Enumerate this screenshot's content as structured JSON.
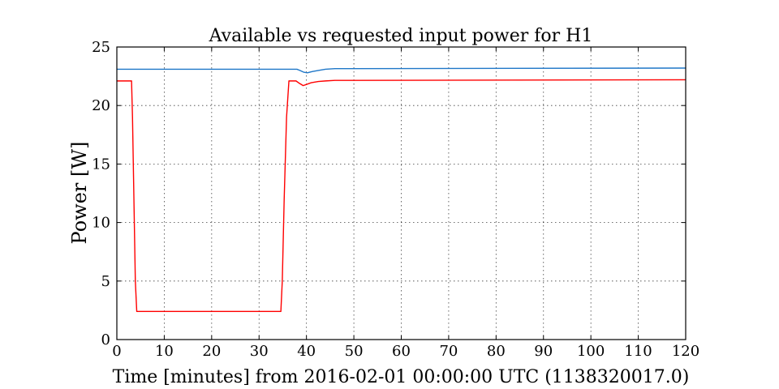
{
  "chart_data": {
    "type": "line",
    "title": "Available vs requested input power for H1",
    "xlabel": "Time [minutes] from 2016-02-01 00:00:00 UTC (1138320017.0)",
    "ylabel": "Power [W]",
    "xlim": [
      0,
      120
    ],
    "ylim": [
      0,
      25
    ],
    "xticks": [
      0,
      10,
      20,
      30,
      40,
      50,
      60,
      70,
      80,
      90,
      100,
      110,
      120
    ],
    "yticks": [
      0,
      5,
      10,
      15,
      20,
      25
    ],
    "grid": true,
    "series": [
      {
        "color": "#1f77c8",
        "x": [
          0,
          38,
          38.6,
          39.4,
          40.2,
          41.2,
          42.5,
          44,
          46,
          50,
          120
        ],
        "y": [
          23.1,
          23.1,
          23.0,
          22.85,
          22.8,
          22.9,
          23.0,
          23.1,
          23.15,
          23.15,
          23.2
        ]
      },
      {
        "color": "#ff0000",
        "x": [
          0,
          3.1,
          3.3,
          3.6,
          3.9,
          4.2,
          34.6,
          34.9,
          35.3,
          35.8,
          36.3,
          37.8,
          38.5,
          39.3,
          40.0,
          41.0,
          42.5,
          44.0,
          46.0,
          50.0,
          120
        ],
        "y": [
          22.1,
          22.1,
          19.0,
          12.0,
          5.0,
          2.4,
          2.4,
          5.0,
          12.0,
          19.0,
          22.1,
          22.1,
          21.9,
          21.7,
          21.8,
          21.95,
          22.05,
          22.1,
          22.15,
          22.15,
          22.2
        ]
      }
    ]
  }
}
